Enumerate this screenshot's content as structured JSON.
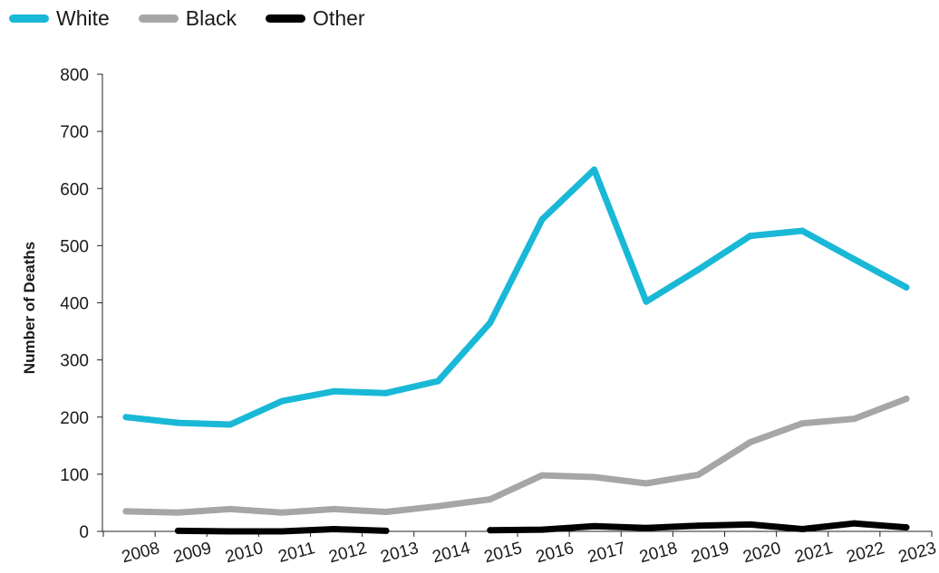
{
  "chart_data": {
    "type": "line",
    "title": "",
    "xlabel": "",
    "ylabel": "Number of Deaths",
    "ylim": [
      0,
      800
    ],
    "yticks": [
      0,
      100,
      200,
      300,
      400,
      500,
      600,
      700,
      800
    ],
    "categories": [
      "2008",
      "2009",
      "2010",
      "2011",
      "2012",
      "2013",
      "2014",
      "2015",
      "2016",
      "2017",
      "2018",
      "2019",
      "2020",
      "2021",
      "2022",
      "2023"
    ],
    "legend_position": "top-left",
    "grid": false,
    "series": [
      {
        "name": "White",
        "color": "#19b8d6",
        "values": [
          200,
          190,
          187,
          228,
          245,
          242,
          263,
          365,
          546,
          633,
          402,
          458,
          517,
          526,
          476,
          427
        ]
      },
      {
        "name": "Black",
        "color": "#a6a6a6",
        "values": [
          35,
          33,
          39,
          33,
          39,
          34,
          44,
          56,
          98,
          95,
          84,
          99,
          156,
          189,
          197,
          232
        ]
      },
      {
        "name": "Other",
        "color": "#000000",
        "values": [
          null,
          1,
          0,
          0,
          4,
          1,
          null,
          2,
          3,
          9,
          6,
          10,
          12,
          4,
          14,
          7
        ]
      }
    ]
  }
}
